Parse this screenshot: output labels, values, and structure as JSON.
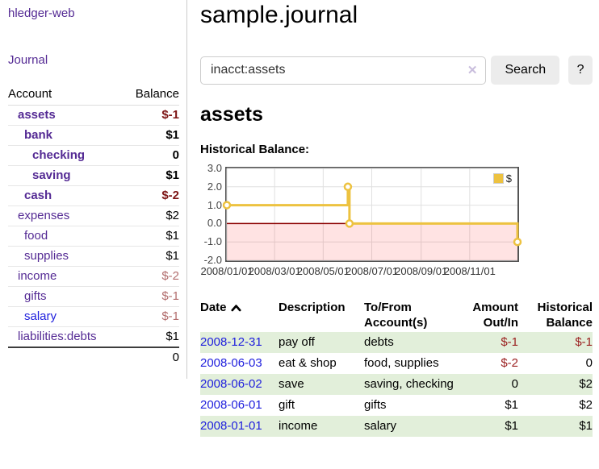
{
  "app": {
    "title": "hledger-web"
  },
  "sidebar": {
    "nav": {
      "journal_label": "Journal"
    },
    "table": {
      "headers": {
        "account": "Account",
        "balance": "Balance"
      },
      "rows": [
        {
          "label": "assets",
          "balance": "$-1",
          "depth": 1,
          "match": true,
          "neg": "strong"
        },
        {
          "label": "bank",
          "balance": "$1",
          "depth": 2,
          "match": true
        },
        {
          "label": "checking",
          "balance": "0",
          "depth": 3,
          "match": true
        },
        {
          "label": "saving",
          "balance": "$1",
          "depth": 3,
          "match": true
        },
        {
          "label": "cash",
          "balance": "$-2",
          "depth": 2,
          "match": true,
          "neg": "strong"
        },
        {
          "label": "expenses",
          "balance": "$2",
          "depth": 1
        },
        {
          "label": "food",
          "balance": "$1",
          "depth": 2
        },
        {
          "label": "supplies",
          "balance": "$1",
          "depth": 2
        },
        {
          "label": "income",
          "balance": "$-2",
          "depth": 1,
          "neg": "soft"
        },
        {
          "label": "gifts",
          "balance": "$-1",
          "depth": 2,
          "neg": "soft"
        },
        {
          "label": "salary",
          "balance": "$-1",
          "depth": 2,
          "neg": "soft",
          "unvisited": true
        },
        {
          "label": "liabilities:debts",
          "balance": "$1",
          "depth": 1
        }
      ],
      "total": "0"
    }
  },
  "header": {
    "title": "sample.journal"
  },
  "search": {
    "value": "inacct:assets",
    "clear_icon": "✕",
    "button_label": "Search",
    "help_label": "?"
  },
  "account_page": {
    "title": "assets",
    "chart_title": "Historical Balance:"
  },
  "chart_data": {
    "type": "line",
    "step": true,
    "title": "Historical Balance",
    "series": [
      {
        "name": "$",
        "color": "#edc240",
        "points": [
          [
            "2008/01/01",
            1
          ],
          [
            "2008/06/01",
            2
          ],
          [
            "2008/06/03",
            0
          ],
          [
            "2008/12/31",
            -1
          ]
        ]
      }
    ],
    "xlim": [
      "2008/01/01",
      "2008/12/31"
    ],
    "ylim": [
      -2,
      3
    ],
    "x_ticks": [
      "2008/01/01",
      "2008/03/01",
      "2008/05/01",
      "2008/07/01",
      "2008/09/01",
      "2008/11/01"
    ],
    "y_ticks": [
      "3.0",
      "2.0",
      "1.0",
      "0.0",
      "-1.0",
      "-2.0"
    ],
    "grid": true,
    "legend_position": "top-right",
    "zero_line_color": "#8b0000",
    "negative_region_color": "rgba(255,0,0,0.11)",
    "grid_color": "#e0e0e0"
  },
  "register": {
    "headers": {
      "date": "Date",
      "description": "Description",
      "accounts": "To/From Account(s)",
      "amount": "Amount Out/In",
      "balance": "Historical Balance"
    },
    "sort": {
      "column": "date",
      "direction": "asc"
    },
    "rows": [
      {
        "date": "2008-12-31",
        "description": "pay off",
        "accounts": "debts",
        "amount": "$-1",
        "balance": "$-1",
        "amount_neg": true,
        "balance_neg": true
      },
      {
        "date": "2008-06-03",
        "description": "eat & shop",
        "accounts": "food, supplies",
        "amount": "$-2",
        "balance": "0",
        "amount_neg": true
      },
      {
        "date": "2008-06-02",
        "description": "save",
        "accounts": "saving, checking",
        "amount": "0",
        "balance": "$2"
      },
      {
        "date": "2008-06-01",
        "description": "gift",
        "accounts": "gifts",
        "amount": "$1",
        "balance": "$2"
      },
      {
        "date": "2008-01-01",
        "description": "income",
        "accounts": "salary",
        "amount": "$1",
        "balance": "$1"
      }
    ]
  },
  "colors": {
    "link_purple": "#542a94",
    "link_blue": "#2020dd",
    "negative_strong": "#7d1515",
    "negative_soft": "#b26d6d",
    "negative_table": "#9b2020",
    "row_stripe_green": "#e2efda",
    "series_yellow": "#edc240",
    "zero_line_red": "#8b0000",
    "button_gray": "#ececec"
  }
}
